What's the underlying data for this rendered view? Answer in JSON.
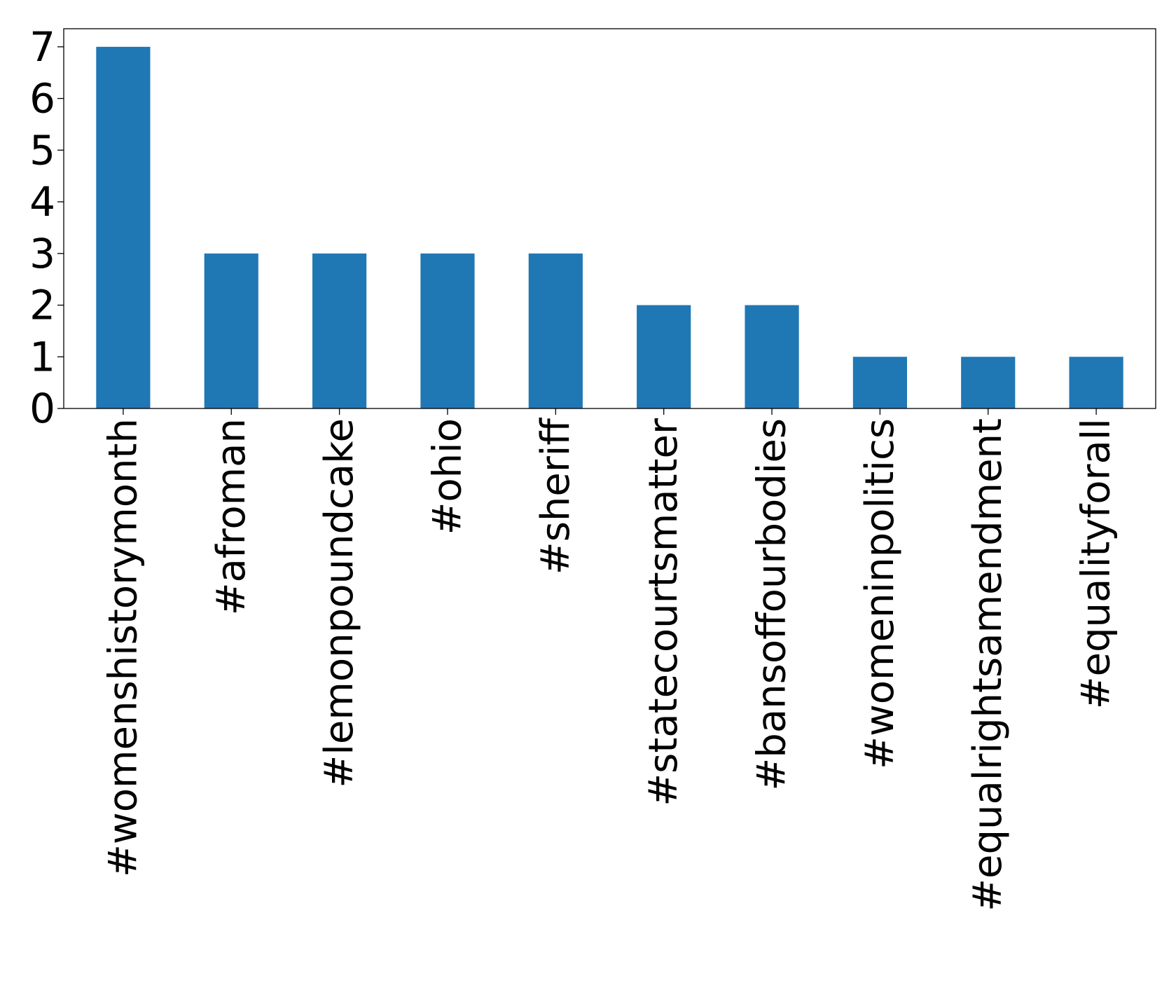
{
  "chart_data": {
    "type": "bar",
    "title": "",
    "xlabel": "",
    "ylabel": "",
    "categories": [
      "#womenshistorymonth",
      "#afroman",
      "#lemonpoundcake",
      "#ohio",
      "#sheriff",
      "#statecourtsmatter",
      "#bansoffourbodies",
      "#womeninpolitics",
      "#equalrightsamendment",
      "#equalityforall"
    ],
    "values": [
      7,
      3,
      3,
      3,
      3,
      2,
      2,
      1,
      1,
      1
    ],
    "ylim": [
      0,
      7.35
    ],
    "yticks": [
      0,
      1,
      2,
      3,
      4,
      5,
      6,
      7
    ],
    "grid": false,
    "legend": "none",
    "bar_color": "#1f77b4"
  }
}
